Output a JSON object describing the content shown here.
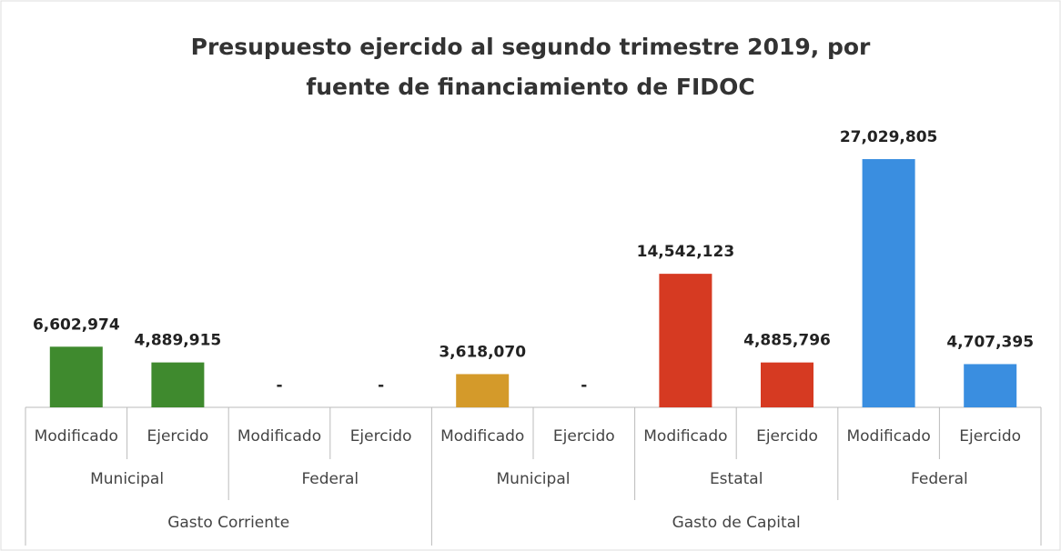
{
  "chart_data": {
    "type": "bar",
    "title": "Presupuesto ejercido al segundo trimestre 2019, por fuente de financiamiento de FIDOC",
    "ylim": [
      0,
      30000000
    ],
    "groups": [
      {
        "name": "Gasto Corriente",
        "subgroups": [
          {
            "name": "Municipal",
            "categories": [
              "Modificado",
              "Ejercido"
            ],
            "values": [
              6602974,
              4889915
            ],
            "value_labels": [
              "6,602,974",
              "4,889,915"
            ],
            "colors": [
              "#3f8a2e",
              "#3f8a2e"
            ]
          },
          {
            "name": "Federal",
            "categories": [
              "Modificado",
              "Ejercido"
            ],
            "values": [
              0,
              0
            ],
            "value_labels": [
              "-",
              "-"
            ],
            "colors": [
              "#3f8a2e",
              "#3f8a2e"
            ]
          }
        ]
      },
      {
        "name": "Gasto de Capital",
        "subgroups": [
          {
            "name": "Municipal",
            "categories": [
              "Modificado",
              "Ejercido"
            ],
            "values": [
              3618070,
              0
            ],
            "value_labels": [
              "3,618,070",
              "-"
            ],
            "colors": [
              "#d49a2a",
              "#d49a2a"
            ]
          },
          {
            "name": "Estatal",
            "categories": [
              "Modificado",
              "Ejercido"
            ],
            "values": [
              14542123,
              4885796
            ],
            "value_labels": [
              "14,542,123",
              "4,885,796"
            ],
            "colors": [
              "#d63a22",
              "#d63a22"
            ]
          },
          {
            "name": "Federal",
            "categories": [
              "Modificado",
              "Ejercido"
            ],
            "values": [
              27029805,
              4707395
            ],
            "value_labels": [
              "27,029,805",
              "4,707,395"
            ],
            "colors": [
              "#3a8ee0",
              "#3a8ee0"
            ]
          }
        ]
      }
    ]
  }
}
